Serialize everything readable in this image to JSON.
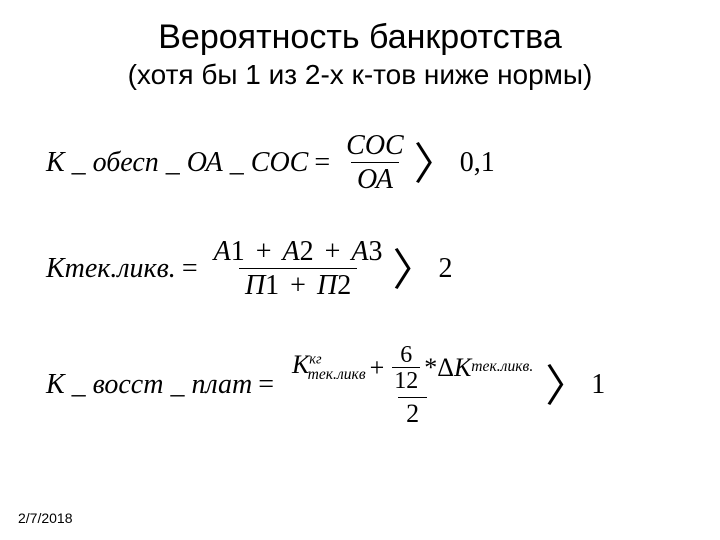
{
  "title": "Вероятность банкротства",
  "subtitle": "(хотя бы 1 из 2-х к-тов ниже нормы)",
  "date": "2/7/2018",
  "f1": {
    "lhs": "К _ обесп _ ОА _ СОС",
    "num": "СОС",
    "den": "ОА",
    "tail": "0,1"
  },
  "f2": {
    "lhs": "Ктек.ликв.",
    "a1": "А",
    "n1": "1",
    "a2": "А",
    "n2": "2",
    "a3": "А",
    "n3": "3",
    "p1": "П",
    "d1": "1",
    "p2": "П",
    "d2": "2",
    "tail": "2"
  },
  "f3": {
    "lhs": "К _ восст _ плат",
    "k1": "К",
    "k1_sup": "кг",
    "k1_sub": "тек.ликв",
    "six": "6",
    "twelve": "12",
    "star": "*",
    "delta": "Δ",
    "k2": "К",
    "k2_sub": "тек.ликв.",
    "den": "2",
    "tail": "1"
  },
  "style": {
    "bg": "#ffffff",
    "fg": "#000000",
    "title_fontsize": 34,
    "subtitle_fontsize": 28,
    "formula_fontsize": 28,
    "date_fontsize": 14
  }
}
